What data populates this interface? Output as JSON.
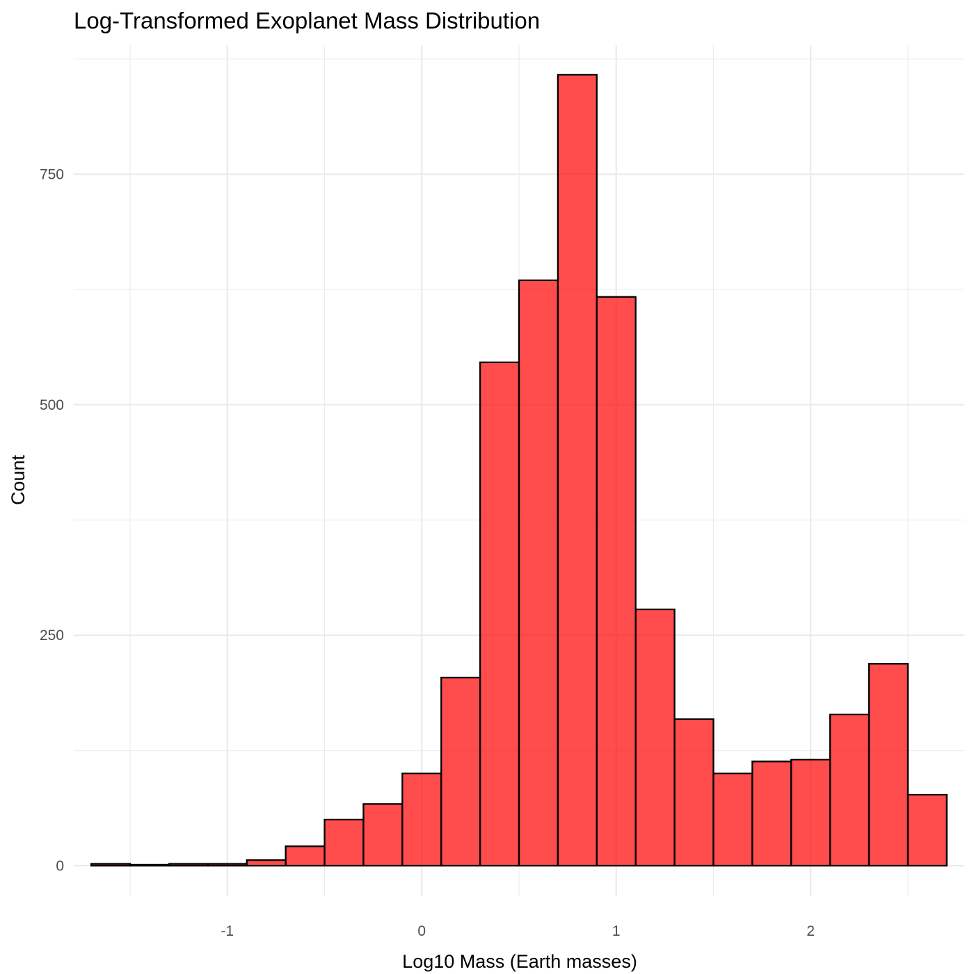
{
  "chart_data": {
    "type": "bar",
    "title": "Log-Transformed Exoplanet Mass Distribution",
    "xlabel": "Log10 Mass (Earth masses)",
    "ylabel": "Count",
    "xlim": [
      -1.79,
      2.79
    ],
    "ylim": [
      -33,
      890
    ],
    "x_ticks": [
      -1,
      0,
      1,
      2
    ],
    "x_tick_labels": [
      "-1",
      "0",
      "1",
      "2"
    ],
    "x_minor_ticks": [
      -1.5,
      -0.5,
      0.5,
      1.5,
      2.5
    ],
    "y_ticks": [
      0,
      250,
      500,
      750
    ],
    "y_tick_labels": [
      "0",
      "250",
      "500",
      "750"
    ],
    "y_minor_ticks": [
      125,
      375,
      625,
      875
    ],
    "grid": true,
    "bin_width": 0.2,
    "bin_starts": [
      -1.7,
      -1.5,
      -1.3,
      -1.1,
      -0.9,
      -0.7,
      -0.5,
      -0.3,
      -0.1,
      0.1,
      0.3,
      0.5,
      0.7,
      0.9,
      1.1,
      1.3,
      1.5,
      1.7,
      1.9,
      2.1,
      2.3,
      2.5
    ],
    "values": [
      2,
      1,
      2,
      2,
      6,
      21,
      50,
      67,
      100,
      204,
      546,
      635,
      858,
      617,
      278,
      159,
      100,
      113,
      115,
      164,
      219,
      77
    ],
    "colors": {
      "fill": "#ff0000",
      "fill_opacity": 0.7,
      "outline": "#000000",
      "grid": "#ebebeb",
      "tick_text": "#4d4d4d"
    }
  }
}
